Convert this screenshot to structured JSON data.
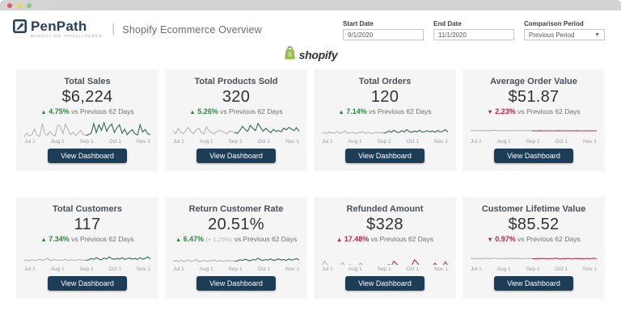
{
  "header": {
    "brand": "PenPath",
    "tagline": "MARKETING INTELLIGENCE",
    "divider": "|",
    "title": "Shopify Ecommerce Overview",
    "filters": {
      "start_date": {
        "label": "Start Date",
        "value": "9/1/2020"
      },
      "end_date": {
        "label": "End Date",
        "value": "11/1/2020"
      },
      "comparison": {
        "label": "Comparison Period",
        "value": "Previous Period"
      }
    }
  },
  "source_logo": {
    "word": "shopify"
  },
  "button_label": "View Dashboard",
  "delta_suffix": "vs Previous 62 Days",
  "axis_labels": [
    "Jul 1",
    "Aug 1",
    "Sep 1",
    "Oct 1",
    "Nov 1"
  ],
  "colors": {
    "green_text": "#2e8540",
    "red_text": "#c02339",
    "green_line": "#2f6b4c",
    "red_line": "#b63045",
    "gray_line": "#b4b4b4",
    "button_navy": "#1d3c55",
    "brand_navy": "#27415c",
    "shopify_green": "#95bf47"
  },
  "cards": [
    {
      "title": "Total Sales",
      "value": "$6,224",
      "arrow": "▲",
      "delta": "4.75%",
      "delta_secondary": "",
      "sentiment": "green",
      "series": {
        "ymin": 0,
        "ymax": 105,
        "previous": [
          18,
          40,
          22,
          30,
          62,
          25,
          20,
          95,
          35,
          26,
          48,
          30,
          22,
          88,
          78,
          35,
          92,
          60,
          30,
          45,
          25,
          40,
          55,
          30,
          26
        ],
        "current": [
          30,
          38,
          95,
          42,
          88,
          55,
          100,
          50,
          78,
          92,
          42,
          70,
          88,
          38,
          62,
          30,
          48,
          58,
          35,
          28,
          88,
          45,
          60,
          35,
          30
        ]
      }
    },
    {
      "title": "Total Products Sold",
      "value": "320",
      "arrow": "▲",
      "delta": "5.26%",
      "delta_secondary": "",
      "sentiment": "green",
      "series": {
        "ymin": 0,
        "ymax": 90,
        "previous": [
          45,
          30,
          58,
          38,
          30,
          48,
          62,
          40,
          32,
          50,
          58,
          36,
          30,
          65,
          45,
          36,
          30,
          40,
          48,
          42,
          36,
          30,
          44,
          40,
          36
        ],
        "current": [
          32,
          48,
          68,
          52,
          42,
          72,
          58,
          46,
          82,
          62,
          42,
          58,
          46,
          36,
          52,
          42,
          46,
          40,
          58,
          50,
          62,
          54,
          46,
          60,
          42
        ]
      }
    },
    {
      "title": "Total Orders",
      "value": "120",
      "arrow": "▲",
      "delta": "7.14%",
      "delta_secondary": "",
      "sentiment": "green",
      "series": {
        "ymin": 0,
        "ymax": 55,
        "previous": [
          20,
          22,
          19,
          24,
          20,
          21,
          25,
          20,
          22,
          27,
          20,
          21,
          23,
          19,
          22,
          21,
          25,
          20,
          22,
          21,
          19,
          23,
          21,
          22,
          20
        ],
        "current": [
          22,
          27,
          23,
          29,
          24,
          22,
          28,
          24,
          31,
          25,
          23,
          27,
          24,
          29,
          23,
          25,
          28,
          24,
          27,
          23,
          29,
          24,
          26,
          31,
          24
        ]
      }
    },
    {
      "title": "Average Order Value",
      "value": "$51.87",
      "arrow": "▼",
      "delta": "2.23%",
      "delta_secondary": "",
      "sentiment": "red",
      "series": {
        "ymin": 0,
        "ymax": 100,
        "previous": [
          51,
          51,
          52,
          51,
          51,
          51,
          52,
          51,
          51,
          53,
          52,
          51,
          51,
          52,
          51,
          51,
          51,
          52,
          51,
          51,
          52,
          51,
          51,
          51,
          51
        ],
        "current": [
          50,
          50,
          51,
          50,
          50,
          50,
          50,
          50,
          50,
          51,
          50,
          50,
          50,
          50,
          50,
          50,
          51,
          50,
          50,
          50,
          50,
          50,
          50,
          50,
          50
        ]
      }
    },
    {
      "title": "Total Customers",
      "value": "117",
      "arrow": "▲",
      "delta": "7.34%",
      "delta_secondary": "",
      "sentiment": "green",
      "series": {
        "ymin": 0,
        "ymax": 50,
        "previous": [
          19,
          21,
          18,
          22,
          19,
          20,
          23,
          19,
          21,
          25,
          19,
          20,
          22,
          19,
          21,
          20,
          23,
          19,
          21,
          20,
          19,
          22,
          20,
          21,
          19
        ],
        "current": [
          21,
          25,
          22,
          27,
          23,
          21,
          26,
          23,
          29,
          24,
          22,
          25,
          23,
          27,
          22,
          24,
          26,
          23,
          25,
          22,
          27,
          23,
          25,
          29,
          23
        ]
      }
    },
    {
      "title": "Return Customer Rate",
      "value": "20.51%",
      "arrow": "▲",
      "delta": "6.47%",
      "delta_secondary": "(+ 1.25%)",
      "sentiment": "green",
      "series": {
        "ymin": 0,
        "ymax": 55,
        "previous": [
          18,
          21,
          17,
          22,
          18,
          19,
          23,
          18,
          20,
          24,
          18,
          19,
          22,
          18,
          21,
          19,
          23,
          18,
          21,
          19,
          18,
          22,
          19,
          21,
          18
        ],
        "current": [
          20,
          23,
          21,
          25,
          22,
          20,
          24,
          22,
          28,
          23,
          21,
          24,
          22,
          26,
          21,
          23,
          26,
          22,
          24,
          21,
          26,
          22,
          24,
          27,
          22
        ]
      }
    },
    {
      "title": "Refunded Amount",
      "value": "$328",
      "arrow": "▲",
      "delta": "17.48%",
      "delta_secondary": "",
      "sentiment": "red",
      "series": {
        "ymin": 0,
        "ymax": 26,
        "previous": [
          2,
          9,
          4,
          2,
          2,
          3,
          2,
          2,
          7,
          2,
          2,
          4,
          2,
          2,
          2,
          6,
          3,
          2,
          2,
          2,
          3,
          2,
          2,
          2,
          2
        ],
        "current": [
          2,
          4,
          2,
          9,
          5,
          2,
          3,
          2,
          2,
          2,
          3,
          11,
          7,
          2,
          3,
          2,
          2,
          2,
          2,
          6,
          2,
          3,
          2,
          8,
          2
        ]
      }
    },
    {
      "title": "Customer Lifetime Value",
      "value": "$85.52",
      "arrow": "▼",
      "delta": "0.97%",
      "delta_secondary": "",
      "sentiment": "red",
      "series": {
        "ymin": 0,
        "ymax": 175,
        "previous": [
          84,
          87,
          83,
          88,
          84,
          85,
          90,
          84,
          86,
          92,
          84,
          85,
          88,
          83,
          86,
          85,
          90,
          84,
          87,
          85,
          83,
          88,
          85,
          86,
          84
        ],
        "current": [
          83,
          86,
          84,
          88,
          85,
          83,
          87,
          85,
          90,
          85,
          83,
          86,
          84,
          88,
          83,
          85,
          88,
          84,
          86,
          83,
          88,
          84,
          86,
          89,
          84
        ]
      }
    }
  ]
}
